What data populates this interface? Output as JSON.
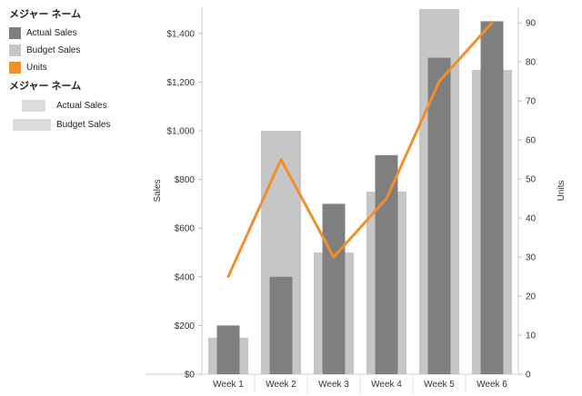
{
  "legend_top": {
    "title": "メジャー ネーム",
    "items": [
      {
        "label": "Actual Sales",
        "color": "#7f7f7f"
      },
      {
        "label": "Budget Sales",
        "color": "#c6c6c6"
      },
      {
        "label": "Units",
        "color": "#f28e2b"
      }
    ]
  },
  "legend_bottom": {
    "title": "メジャー ネーム",
    "items": [
      {
        "label": "Actual Sales",
        "color": "#dcdcdc"
      },
      {
        "label": "Budget Sales",
        "color": "#dcdcdc"
      }
    ]
  },
  "chart_data": {
    "type": "bar",
    "categories": [
      "Week 1",
      "Week 2",
      "Week 3",
      "Week 4",
      "Week 5",
      "Week 6"
    ],
    "series": [
      {
        "name": "Budget Sales",
        "type": "bar",
        "axis": "left",
        "color": "#c6c6c6",
        "values": [
          150,
          1000,
          500,
          750,
          1500,
          1250
        ]
      },
      {
        "name": "Actual Sales",
        "type": "bar",
        "axis": "left",
        "color": "#7f7f7f",
        "values": [
          200,
          400,
          700,
          900,
          1300,
          1450
        ]
      },
      {
        "name": "Units",
        "type": "line",
        "axis": "right",
        "color": "#f28e2b",
        "values": [
          25,
          55,
          30,
          45,
          75,
          90
        ]
      }
    ],
    "ylabel": "Sales",
    "y2label": "Units",
    "ylim": [
      0,
      1500
    ],
    "y2lim": [
      0,
      94
    ],
    "yticks": [
      "$0",
      "$200",
      "$400",
      "$600",
      "$800",
      "$1,000",
      "$1,200",
      "$1,400"
    ],
    "ytick_values": [
      0,
      200,
      400,
      600,
      800,
      1000,
      1200,
      1400
    ],
    "y2ticks": [
      0,
      10,
      20,
      30,
      40,
      50,
      60,
      70,
      80,
      90
    ],
    "grid": false
  }
}
